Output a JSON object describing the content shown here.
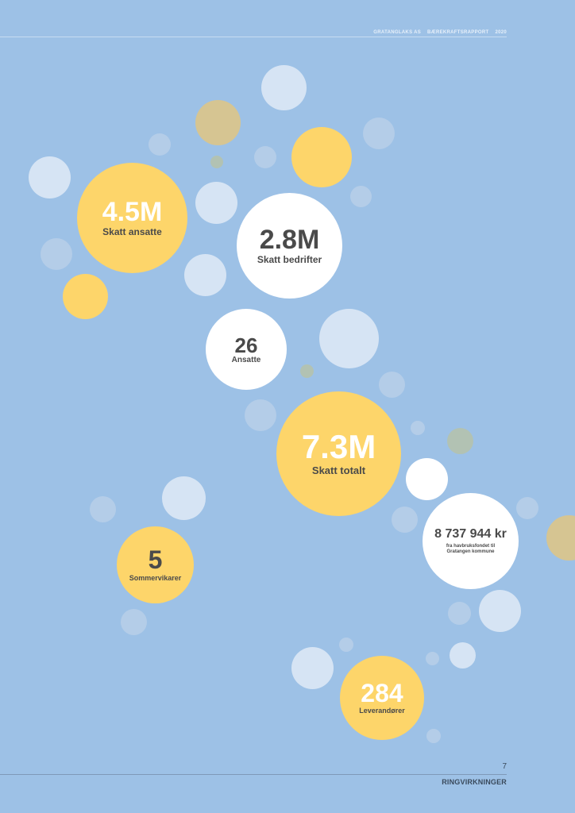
{
  "header": {
    "company": "GRATANGLAKS AS",
    "report": "BÆREKRAFTSRAPPORT",
    "year": "2020"
  },
  "footer": {
    "page_number": "7",
    "section": "RINGVIRKNINGER"
  },
  "stats": {
    "tax_employees": {
      "value": "4.5M",
      "label": "Skatt ansatte"
    },
    "tax_companies": {
      "value": "2.8M",
      "label": "Skatt bedrifter"
    },
    "employees": {
      "value": "26",
      "label": "Ansatte"
    },
    "tax_total": {
      "value": "7.3M",
      "label": "Skatt totalt"
    },
    "summer_staff": {
      "value": "5",
      "label": "Sommervikarer"
    },
    "aquaculture_fund": {
      "value": "8 737 944 kr",
      "label": "fra havbruksfondet til Gratangen kommune"
    },
    "suppliers": {
      "value": "284",
      "label": "Leverandører"
    }
  },
  "colors": {
    "background": "#9dc1e6",
    "accent_yellow": "#fdd56a",
    "text_dark": "#4a4a4a"
  }
}
